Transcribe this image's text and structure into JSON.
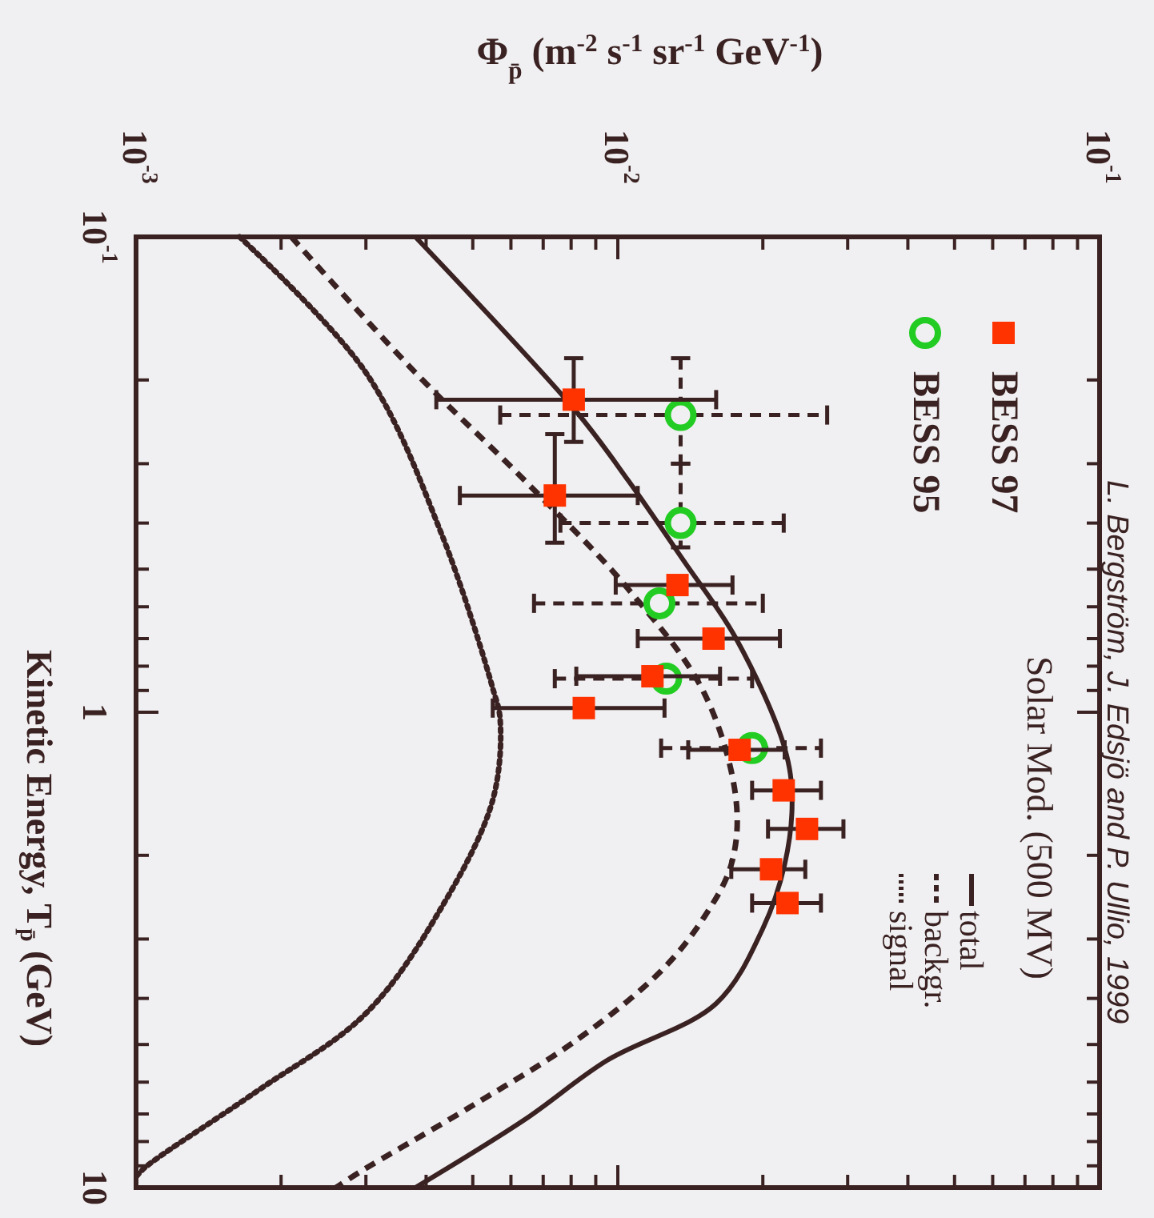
{
  "chart_data": {
    "type": "scatter",
    "xlabel": "Φ$_{p̄}$ (m$^{-2}$ s$^{-1}$ sr$^{-1}$ GeV$^{-1}$)",
    "ylabel": "Kinetic Energy, T$_{p̄}$ (GeV)",
    "legend_title": "Solar Mod. (500 MV)",
    "annotations": [
      "L. Bergström, J. Edsjö and P. Ullio, 1999"
    ],
    "log": "xy",
    "legend": "right",
    "xlim": [
      0.001,
      0.1
    ],
    "ylim": [
      10,
      0.1
    ],
    "xticks": [
      {
        "value": 0.001,
        "label": "10$^{-3}$"
      },
      {
        "value": 0.002,
        "label": null
      },
      {
        "value": 0.003,
        "label": null
      },
      {
        "value": 0.004,
        "label": null
      },
      {
        "value": 0.005,
        "label": null
      },
      {
        "value": 0.006,
        "label": null
      },
      {
        "value": 0.007,
        "label": null
      },
      {
        "value": 0.008,
        "label": null
      },
      {
        "value": 0.009,
        "label": null
      },
      {
        "value": 0.01,
        "label": "10$^{-2}$"
      },
      {
        "value": 0.02,
        "label": null
      },
      {
        "value": 0.03,
        "label": null
      },
      {
        "value": 0.04,
        "label": null
      },
      {
        "value": 0.05,
        "label": null
      },
      {
        "value": 0.06,
        "label": null
      },
      {
        "value": 0.07,
        "label": null
      },
      {
        "value": 0.08,
        "label": null
      },
      {
        "value": 0.09,
        "label": null
      },
      {
        "value": 0.1,
        "label": "10$^{-1}$"
      }
    ],
    "yticks": [
      {
        "value": 0.1,
        "label": "10$^{-1}$"
      },
      {
        "value": 0.2,
        "label": null
      },
      {
        "value": 0.3,
        "label": null
      },
      {
        "value": 0.4,
        "label": null
      },
      {
        "value": 0.5,
        "label": null
      },
      {
        "value": 0.6,
        "label": null
      },
      {
        "value": 0.7,
        "label": null
      },
      {
        "value": 0.8,
        "label": null
      },
      {
        "value": 0.9,
        "label": null
      },
      1,
      {
        "value": 2,
        "label": null
      },
      {
        "value": 3,
        "label": null
      },
      {
        "value": 4,
        "label": null
      },
      {
        "value": 5,
        "label": null
      },
      {
        "value": 6,
        "label": null
      },
      {
        "value": 7,
        "label": null
      },
      {
        "value": 8,
        "label": null
      },
      {
        "value": 9,
        "label": null
      },
      10
    ],
    "series": [
      {
        "name": "BESS 97",
        "marker": "square",
        "color": "#ff3300",
        "x": [
          0.0081,
          0.0074,
          0.0133,
          0.0158,
          0.0118,
          0.0085,
          0.0179,
          0.0221,
          0.0247,
          0.0208,
          0.0225
        ],
        "values": [
          0.22,
          0.35,
          0.54,
          0.7,
          0.84,
          0.98,
          1.2,
          1.46,
          1.76,
          2.14,
          2.52
        ],
        "xerrors": [
          [
            0.0042,
            0.016
          ],
          [
            0.0047,
            0.011
          ],
          [
            0.0099,
            0.0173
          ],
          [
            0.011,
            0.0217
          ],
          [
            0.0082,
            0.0163
          ],
          [
            0.0055,
            0.0125
          ],
          [
            0.014,
            0.0222
          ],
          [
            0.019,
            0.0264
          ],
          [
            0.0205,
            0.0294
          ],
          [
            0.0172,
            0.0245
          ],
          [
            0.019,
            0.0264
          ]
        ],
        "errors": [
          [
            0.18,
            0.27
          ],
          [
            0.26,
            0.44
          ],
          null,
          null,
          null,
          null,
          null,
          null,
          null,
          null,
          null
        ]
      },
      {
        "name": "BESS 95",
        "marker": "circle",
        "line_style": "dashed",
        "color": "#22cc22",
        "x": [
          0.0135,
          0.0135,
          0.0122,
          0.0126,
          0.019
        ],
        "values": [
          0.237,
          0.4,
          0.59,
          0.85,
          1.19
        ],
        "xerrors": [
          [
            0.0057,
            0.0272
          ],
          [
            0.0076,
            0.0221
          ],
          [
            0.0067,
            0.02
          ],
          [
            0.0074,
            0.019
          ],
          [
            0.0123,
            0.0264
          ]
        ],
        "errors": [
          [
            0.18,
            0.3
          ],
          [
            0.3,
            0.45
          ],
          null,
          null,
          null
        ]
      },
      {
        "name": "total",
        "type": "line",
        "line_style": "solid",
        "color": "#3b2222",
        "x": [
          0.0038,
          0.0082,
          0.0105,
          0.0137,
          0.0176,
          0.0222,
          0.023,
          0.0222,
          0.02,
          0.016,
          0.0095,
          0.0064,
          0.0038
        ],
        "values": [
          0.1,
          0.233,
          0.325,
          0.48,
          0.7,
          1.19,
          1.53,
          2.09,
          2.85,
          4.1,
          5.4,
          7.2,
          10
        ]
      },
      {
        "name": "backgr.",
        "type": "line",
        "line_style": "dashed",
        "color": "#3b2222",
        "x": [
          0.0021,
          0.0038,
          0.0064,
          0.0105,
          0.0151,
          0.0176,
          0.0172,
          0.0151,
          0.0123,
          0.0082,
          0.0049,
          0.0029,
          0.0026
        ],
        "values": [
          0.1,
          0.193,
          0.325,
          0.55,
          0.91,
          1.53,
          2.09,
          2.7,
          3.5,
          4.9,
          6.8,
          9.3,
          10
        ]
      },
      {
        "name": "signal",
        "type": "line",
        "line_style": "dotted",
        "color": "#3b2222",
        "x": [
          0.00164,
          0.003,
          0.0043,
          0.0055,
          0.0057,
          0.0055,
          0.0043,
          0.003,
          0.00177,
          0.00104,
          0.001
        ],
        "values": [
          0.1,
          0.193,
          0.42,
          0.89,
          1.04,
          1.53,
          2.58,
          4.3,
          6.3,
          9.1,
          9.5
        ]
      }
    ]
  }
}
